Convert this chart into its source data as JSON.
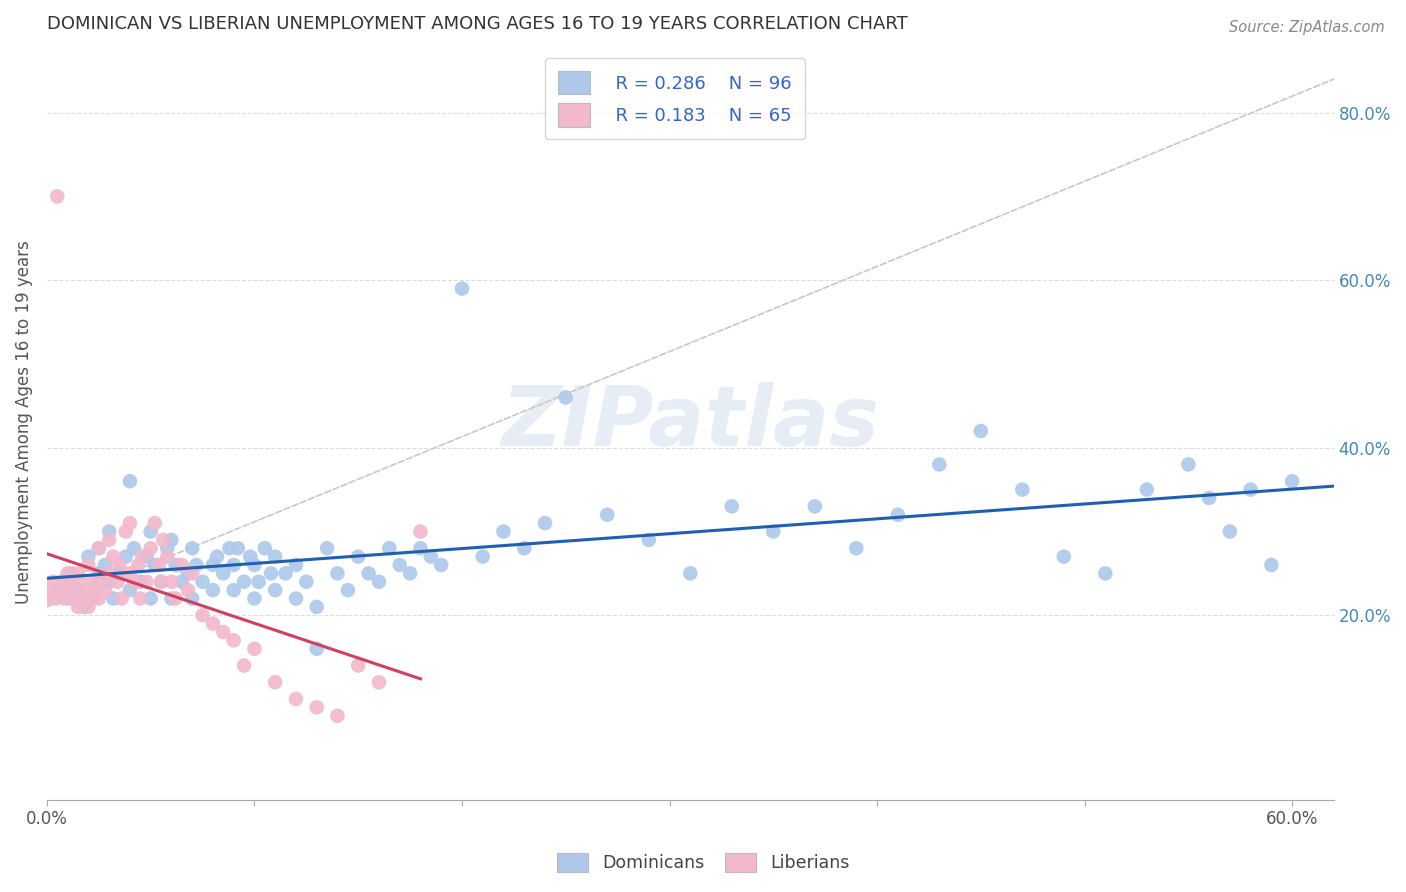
{
  "title": "DOMINICAN VS LIBERIAN UNEMPLOYMENT AMONG AGES 16 TO 19 YEARS CORRELATION CHART",
  "source": "Source: ZipAtlas.com",
  "ylabel": "Unemployment Among Ages 16 to 19 years",
  "xlim": [
    0.0,
    0.62
  ],
  "ylim": [
    -0.02,
    0.88
  ],
  "dominican_color": "#adc8ea",
  "liberian_color": "#f2b8cb",
  "dominican_line_color": "#2060b0",
  "liberian_line_color": "#d04060",
  "R_dominican": 0.286,
  "N_dominican": 96,
  "R_liberian": 0.183,
  "N_liberian": 65,
  "watermark": "ZIPatlas",
  "dom_x": [
    0.005,
    0.008,
    0.01,
    0.012,
    0.015,
    0.018,
    0.02,
    0.022,
    0.025,
    0.025,
    0.028,
    0.03,
    0.03,
    0.032,
    0.035,
    0.038,
    0.04,
    0.04,
    0.042,
    0.045,
    0.048,
    0.05,
    0.05,
    0.052,
    0.055,
    0.058,
    0.06,
    0.06,
    0.062,
    0.065,
    0.068,
    0.07,
    0.07,
    0.072,
    0.075,
    0.08,
    0.08,
    0.082,
    0.085,
    0.088,
    0.09,
    0.09,
    0.092,
    0.095,
    0.098,
    0.1,
    0.1,
    0.102,
    0.105,
    0.108,
    0.11,
    0.11,
    0.115,
    0.12,
    0.12,
    0.125,
    0.13,
    0.13,
    0.135,
    0.14,
    0.145,
    0.15,
    0.155,
    0.16,
    0.165,
    0.17,
    0.175,
    0.18,
    0.185,
    0.19,
    0.2,
    0.21,
    0.22,
    0.23,
    0.24,
    0.25,
    0.27,
    0.29,
    0.31,
    0.33,
    0.35,
    0.37,
    0.39,
    0.41,
    0.43,
    0.45,
    0.47,
    0.49,
    0.51,
    0.53,
    0.55,
    0.56,
    0.57,
    0.58,
    0.59,
    0.6
  ],
  "dom_y": [
    0.23,
    0.24,
    0.22,
    0.25,
    0.23,
    0.21,
    0.27,
    0.22,
    0.28,
    0.25,
    0.26,
    0.24,
    0.3,
    0.22,
    0.25,
    0.27,
    0.23,
    0.36,
    0.28,
    0.24,
    0.27,
    0.22,
    0.3,
    0.26,
    0.24,
    0.28,
    0.22,
    0.29,
    0.26,
    0.24,
    0.25,
    0.22,
    0.28,
    0.26,
    0.24,
    0.26,
    0.23,
    0.27,
    0.25,
    0.28,
    0.23,
    0.26,
    0.28,
    0.24,
    0.27,
    0.22,
    0.26,
    0.24,
    0.28,
    0.25,
    0.23,
    0.27,
    0.25,
    0.22,
    0.26,
    0.24,
    0.21,
    0.16,
    0.28,
    0.25,
    0.23,
    0.27,
    0.25,
    0.24,
    0.28,
    0.26,
    0.25,
    0.28,
    0.27,
    0.26,
    0.59,
    0.27,
    0.3,
    0.28,
    0.31,
    0.46,
    0.32,
    0.29,
    0.25,
    0.33,
    0.3,
    0.33,
    0.28,
    0.32,
    0.38,
    0.42,
    0.35,
    0.27,
    0.25,
    0.35,
    0.38,
    0.34,
    0.3,
    0.35,
    0.26,
    0.36
  ],
  "lib_x": [
    0.0,
    0.002,
    0.003,
    0.004,
    0.005,
    0.006,
    0.007,
    0.008,
    0.009,
    0.01,
    0.01,
    0.012,
    0.013,
    0.015,
    0.015,
    0.016,
    0.018,
    0.019,
    0.02,
    0.02,
    0.022,
    0.022,
    0.024,
    0.025,
    0.025,
    0.026,
    0.028,
    0.03,
    0.03,
    0.032,
    0.034,
    0.035,
    0.036,
    0.038,
    0.04,
    0.04,
    0.042,
    0.044,
    0.045,
    0.046,
    0.048,
    0.05,
    0.052,
    0.054,
    0.055,
    0.056,
    0.058,
    0.06,
    0.062,
    0.065,
    0.068,
    0.07,
    0.075,
    0.08,
    0.085,
    0.09,
    0.095,
    0.1,
    0.11,
    0.12,
    0.13,
    0.14,
    0.15,
    0.16,
    0.18
  ],
  "lib_y": [
    0.22,
    0.23,
    0.24,
    0.22,
    0.7,
    0.23,
    0.24,
    0.22,
    0.23,
    0.24,
    0.25,
    0.23,
    0.22,
    0.21,
    0.25,
    0.24,
    0.22,
    0.23,
    0.21,
    0.26,
    0.24,
    0.22,
    0.23,
    0.28,
    0.22,
    0.24,
    0.23,
    0.29,
    0.25,
    0.27,
    0.24,
    0.26,
    0.22,
    0.3,
    0.25,
    0.31,
    0.24,
    0.26,
    0.22,
    0.27,
    0.24,
    0.28,
    0.31,
    0.26,
    0.24,
    0.29,
    0.27,
    0.24,
    0.22,
    0.26,
    0.23,
    0.25,
    0.2,
    0.19,
    0.18,
    0.17,
    0.14,
    0.16,
    0.12,
    0.1,
    0.09,
    0.08,
    0.14,
    0.12,
    0.3
  ]
}
